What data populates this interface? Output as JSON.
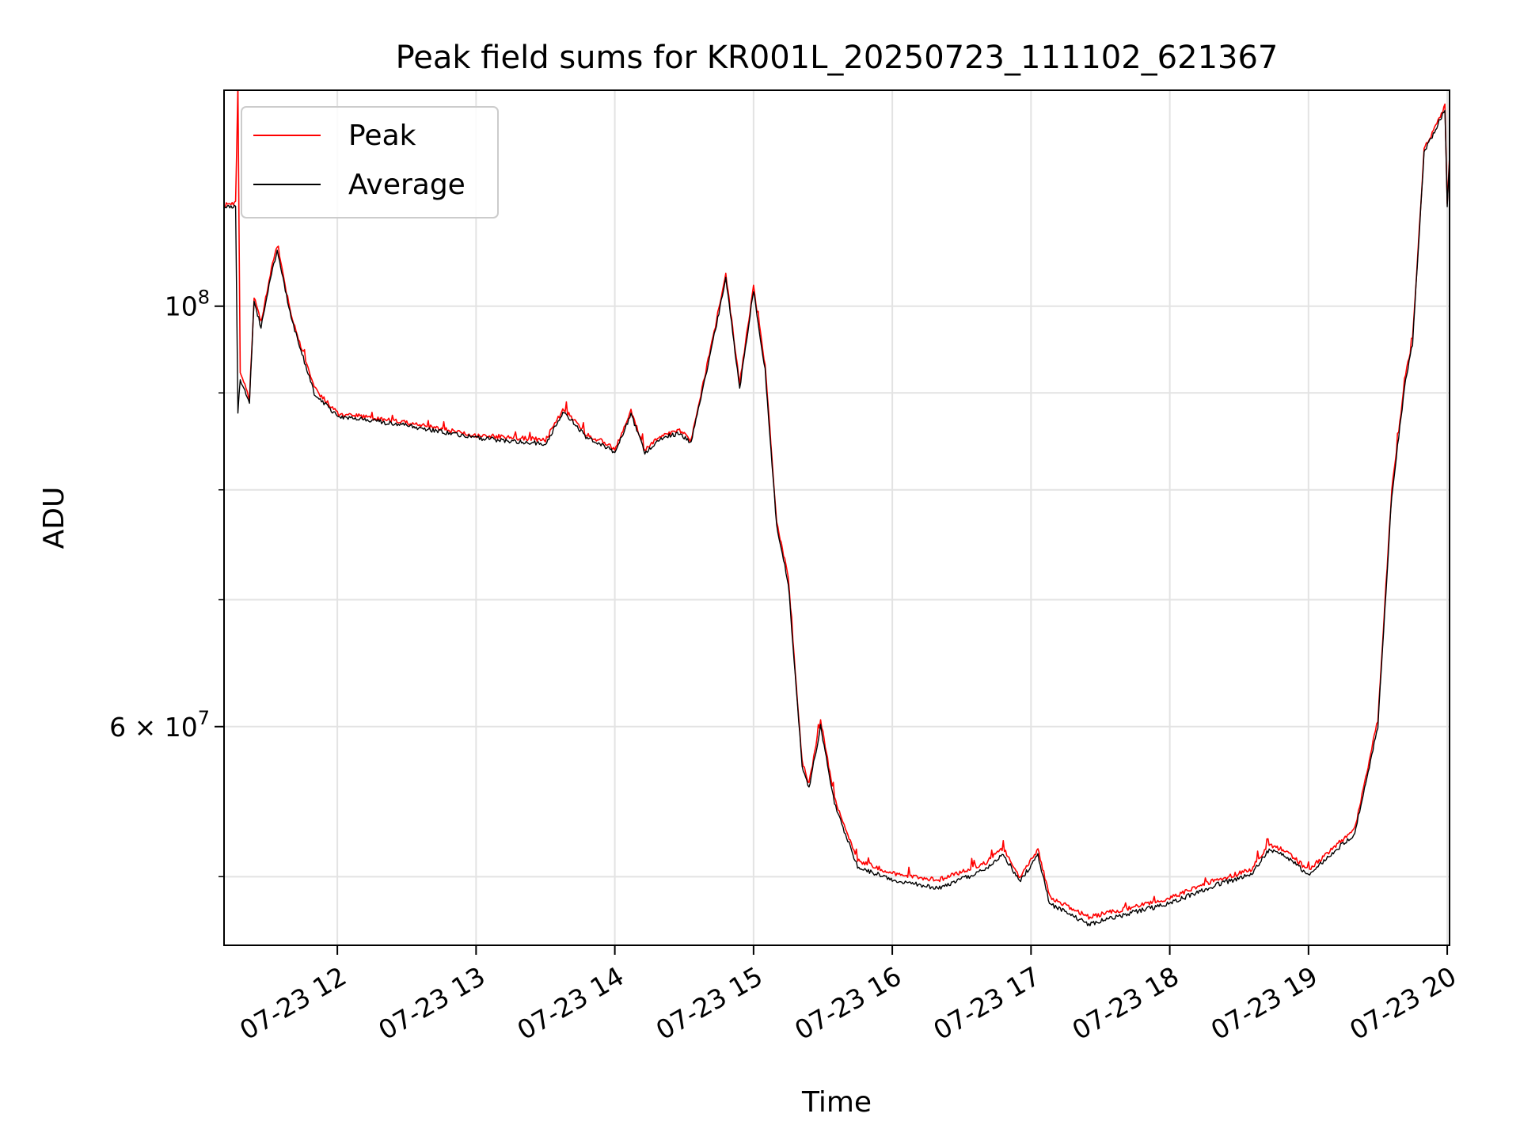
{
  "chart_data": {
    "type": "line",
    "title": "Peak field sums for KR001L_20250723_111102_621367",
    "xlabel": "Time",
    "ylabel": "ADU",
    "y_scale": "log",
    "grid": true,
    "legend_position": "top-left",
    "xlim": [
      "2025-07-23 11:11",
      "2025-07-23 20:01"
    ],
    "ylim": [
      46000000,
      130000000
    ],
    "x_ticks": [
      {
        "t": "2025-07-23 12:00",
        "label": "07-23 12"
      },
      {
        "t": "2025-07-23 13:00",
        "label": "07-23 13"
      },
      {
        "t": "2025-07-23 14:00",
        "label": "07-23 14"
      },
      {
        "t": "2025-07-23 15:00",
        "label": "07-23 15"
      },
      {
        "t": "2025-07-23 16:00",
        "label": "07-23 16"
      },
      {
        "t": "2025-07-23 17:00",
        "label": "07-23 17"
      },
      {
        "t": "2025-07-23 18:00",
        "label": "07-23 18"
      },
      {
        "t": "2025-07-23 19:00",
        "label": "07-23 19"
      },
      {
        "t": "2025-07-23 20:00",
        "label": "07-23 20"
      }
    ],
    "y_major_ticks": [
      {
        "value": 100000000,
        "mant": "10",
        "exp": "8"
      },
      {
        "value": 60000000,
        "mant": "6 × 10",
        "exp": "7"
      }
    ],
    "y_minor_ticks": [
      50000000,
      70000000,
      80000000,
      90000000
    ],
    "series": [
      {
        "name": "Peak",
        "color": "#ff0000",
        "points": [
          [
            "2025-07-23 11:11",
            113000000
          ],
          [
            "2025-07-23 11:16",
            113500000
          ],
          [
            "2025-07-23 11:17",
            130000000
          ],
          [
            "2025-07-23 11:18",
            92000000
          ],
          [
            "2025-07-23 11:22",
            89500000
          ],
          [
            "2025-07-23 11:24",
            101000000
          ],
          [
            "2025-07-23 11:27",
            98000000
          ],
          [
            "2025-07-23 11:31",
            104000000
          ],
          [
            "2025-07-23 11:34",
            107500000
          ],
          [
            "2025-07-23 11:40",
            99000000
          ],
          [
            "2025-07-23 11:50",
            90500000
          ],
          [
            "2025-07-23 12:00",
            87800000
          ],
          [
            "2025-07-23 12:30",
            86800000
          ],
          [
            "2025-07-23 13:00",
            85500000
          ],
          [
            "2025-07-23 13:30",
            85000000
          ],
          [
            "2025-07-23 13:38",
            88300000
          ],
          [
            "2025-07-23 13:48",
            85500000
          ],
          [
            "2025-07-23 13:55",
            84800000
          ],
          [
            "2025-07-23 14:00",
            84000000
          ],
          [
            "2025-07-23 14:07",
            88000000
          ],
          [
            "2025-07-23 14:13",
            84000000
          ],
          [
            "2025-07-23 14:20",
            85500000
          ],
          [
            "2025-07-23 14:28",
            86000000
          ],
          [
            "2025-07-23 14:33",
            85000000
          ],
          [
            "2025-07-23 14:43",
            97000000
          ],
          [
            "2025-07-23 14:48",
            104000000
          ],
          [
            "2025-07-23 14:54",
            91000000
          ],
          [
            "2025-07-23 15:00",
            102500000
          ],
          [
            "2025-07-23 15:05",
            93000000
          ],
          [
            "2025-07-23 15:10",
            77000000
          ],
          [
            "2025-07-23 15:15",
            72000000
          ],
          [
            "2025-07-23 15:21",
            57500000
          ],
          [
            "2025-07-23 15:24",
            56000000
          ],
          [
            "2025-07-23 15:29",
            60500000
          ],
          [
            "2025-07-23 15:35",
            55000000
          ],
          [
            "2025-07-23 15:45",
            51000000
          ],
          [
            "2025-07-23 16:00",
            50200000
          ],
          [
            "2025-07-23 16:20",
            49800000
          ],
          [
            "2025-07-23 16:40",
            50800000
          ],
          [
            "2025-07-23 16:48",
            51800000
          ],
          [
            "2025-07-23 16:55",
            50000000
          ],
          [
            "2025-07-23 17:03",
            51700000
          ],
          [
            "2025-07-23 17:08",
            48800000
          ],
          [
            "2025-07-23 17:25",
            47600000
          ],
          [
            "2025-07-23 17:45",
            48200000
          ],
          [
            "2025-07-23 18:00",
            48700000
          ],
          [
            "2025-07-23 18:20",
            49800000
          ],
          [
            "2025-07-23 18:35",
            50400000
          ],
          [
            "2025-07-23 18:43",
            52000000
          ],
          [
            "2025-07-23 18:50",
            51600000
          ],
          [
            "2025-07-23 19:00",
            50400000
          ],
          [
            "2025-07-23 19:20",
            53000000
          ],
          [
            "2025-07-23 19:30",
            60500000
          ],
          [
            "2025-07-23 19:36",
            80000000
          ],
          [
            "2025-07-23 19:42",
            92000000
          ],
          [
            "2025-07-23 19:45",
            96000000
          ],
          [
            "2025-07-23 19:50",
            121000000
          ],
          [
            "2025-07-23 19:59",
            127500000
          ],
          [
            "2025-07-23 20:00",
            113500000
          ],
          [
            "2025-07-23 20:01",
            120000000
          ]
        ]
      },
      {
        "name": "Average",
        "color": "#000000",
        "points": [
          [
            "2025-07-23 11:11",
            112700000
          ],
          [
            "2025-07-23 11:16",
            113000000
          ],
          [
            "2025-07-23 11:17",
            88000000
          ],
          [
            "2025-07-23 11:18",
            91500000
          ],
          [
            "2025-07-23 11:22",
            89000000
          ],
          [
            "2025-07-23 11:24",
            100500000
          ],
          [
            "2025-07-23 11:27",
            97500000
          ],
          [
            "2025-07-23 11:31",
            103500000
          ],
          [
            "2025-07-23 11:34",
            107000000
          ],
          [
            "2025-07-23 11:40",
            98500000
          ],
          [
            "2025-07-23 11:50",
            90000000
          ],
          [
            "2025-07-23 12:00",
            87500000
          ],
          [
            "2025-07-23 12:30",
            86500000
          ],
          [
            "2025-07-23 13:00",
            85200000
          ],
          [
            "2025-07-23 13:30",
            84600000
          ],
          [
            "2025-07-23 13:38",
            88000000
          ],
          [
            "2025-07-23 13:48",
            85200000
          ],
          [
            "2025-07-23 13:55",
            84500000
          ],
          [
            "2025-07-23 14:00",
            83700000
          ],
          [
            "2025-07-23 14:07",
            87700000
          ],
          [
            "2025-07-23 14:13",
            83700000
          ],
          [
            "2025-07-23 14:20",
            85200000
          ],
          [
            "2025-07-23 14:28",
            85700000
          ],
          [
            "2025-07-23 14:33",
            84700000
          ],
          [
            "2025-07-23 14:43",
            96500000
          ],
          [
            "2025-07-23 14:48",
            103500000
          ],
          [
            "2025-07-23 14:54",
            90500000
          ],
          [
            "2025-07-23 15:00",
            102000000
          ],
          [
            "2025-07-23 15:05",
            92500000
          ],
          [
            "2025-07-23 15:10",
            76500000
          ],
          [
            "2025-07-23 15:15",
            71500000
          ],
          [
            "2025-07-23 15:21",
            57200000
          ],
          [
            "2025-07-23 15:24",
            55700000
          ],
          [
            "2025-07-23 15:29",
            60000000
          ],
          [
            "2025-07-23 15:35",
            54600000
          ],
          [
            "2025-07-23 15:45",
            50600000
          ],
          [
            "2025-07-23 16:00",
            49800000
          ],
          [
            "2025-07-23 16:20",
            49300000
          ],
          [
            "2025-07-23 16:40",
            50400000
          ],
          [
            "2025-07-23 16:48",
            51400000
          ],
          [
            "2025-07-23 16:55",
            49700000
          ],
          [
            "2025-07-23 17:03",
            51300000
          ],
          [
            "2025-07-23 17:08",
            48400000
          ],
          [
            "2025-07-23 17:25",
            47200000
          ],
          [
            "2025-07-23 17:45",
            47900000
          ],
          [
            "2025-07-23 18:00",
            48400000
          ],
          [
            "2025-07-23 18:20",
            49500000
          ],
          [
            "2025-07-23 18:35",
            50100000
          ],
          [
            "2025-07-23 18:43",
            51700000
          ],
          [
            "2025-07-23 18:50",
            51300000
          ],
          [
            "2025-07-23 19:00",
            50100000
          ],
          [
            "2025-07-23 19:20",
            52700000
          ],
          [
            "2025-07-23 19:30",
            60000000
          ],
          [
            "2025-07-23 19:36",
            79500000
          ],
          [
            "2025-07-23 19:42",
            91500000
          ],
          [
            "2025-07-23 19:45",
            95500000
          ],
          [
            "2025-07-23 19:50",
            120500000
          ],
          [
            "2025-07-23 19:59",
            127000000
          ],
          [
            "2025-07-23 20:00",
            113000000
          ],
          [
            "2025-07-23 20:01",
            119500000
          ]
        ]
      }
    ]
  }
}
